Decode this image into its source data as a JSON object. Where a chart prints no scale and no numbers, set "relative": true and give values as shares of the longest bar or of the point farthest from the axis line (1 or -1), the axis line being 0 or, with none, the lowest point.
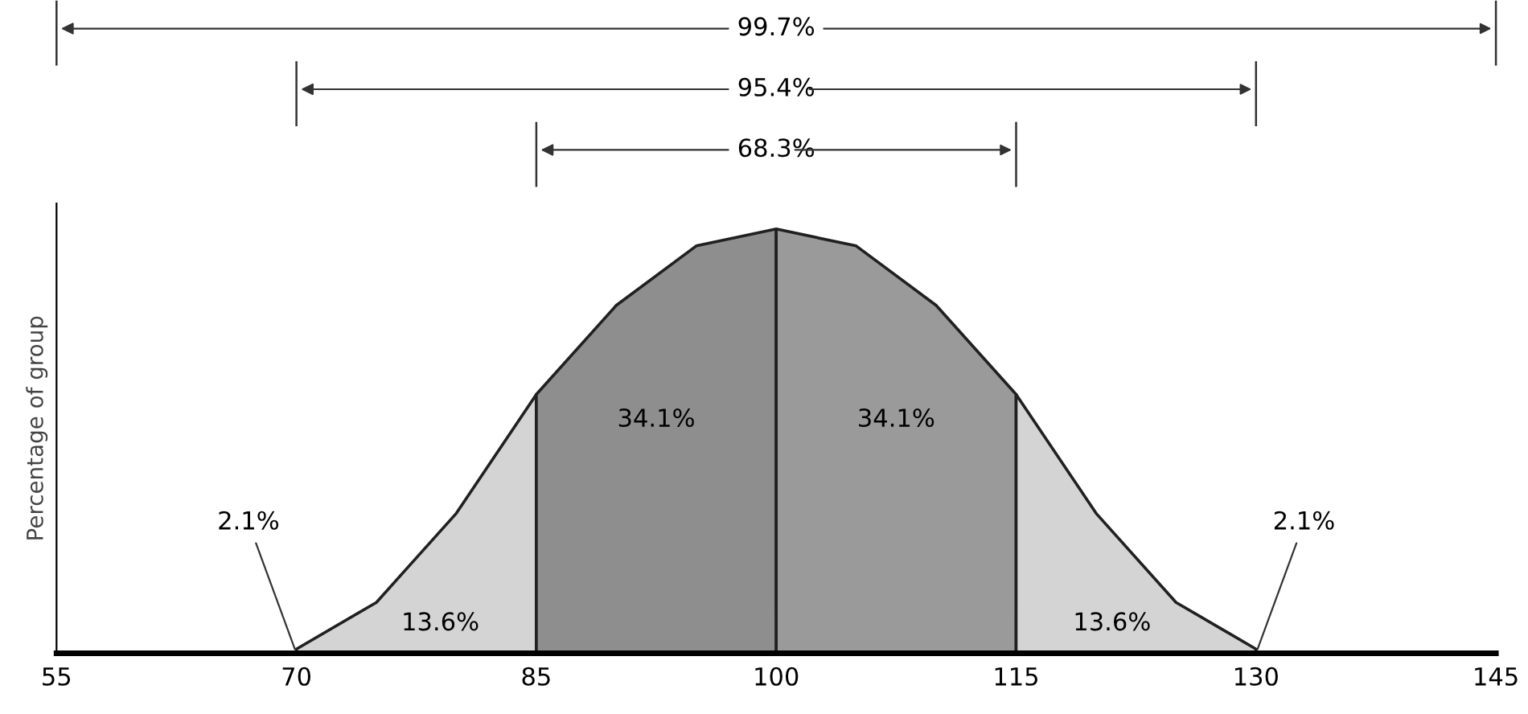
{
  "chart_data": {
    "type": "area",
    "relative": true,
    "ylabel": "Percentage of group",
    "series": [
      {
        "color": "#d4d4d4",
        "x": [
          70,
          75,
          80,
          85
        ],
        "values": [
          0.01,
          0.12,
          0.33,
          0.61
        ]
      },
      {
        "color": "#8e8e8e",
        "x": [
          85,
          90,
          95,
          100
        ],
        "values": [
          0.61,
          0.82,
          0.96,
          1
        ]
      },
      {
        "color": "#9a9a9a",
        "x": [
          100,
          105,
          110,
          115
        ],
        "values": [
          1,
          0.96,
          0.82,
          0.61
        ]
      },
      {
        "color": "#d4d4d4",
        "x": [
          115,
          120,
          125,
          130
        ],
        "values": [
          0.61,
          0.33,
          0.12,
          0.01
        ]
      }
    ],
    "xlim": [
      55,
      145
    ],
    "xticks": [
      55,
      70,
      85,
      100,
      115,
      130,
      145
    ],
    "annotations": [
      "99.7%",
      "95.4%",
      "68.3%",
      "13.6%",
      "34.1%",
      "34.1%",
      "13.6%",
      {
        "text": "2.1%",
        "x": 70,
        "y": 0
      },
      {
        "text": "2.1%",
        "x": 130,
        "y": 0
      }
    ],
    "grid": false
  }
}
